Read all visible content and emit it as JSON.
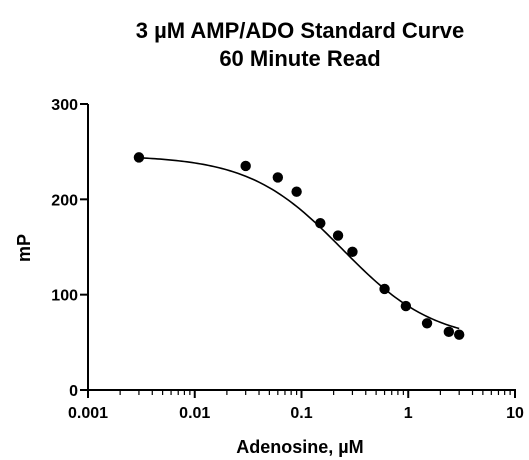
{
  "chart_data": {
    "type": "scatter",
    "scale": {
      "x": "log",
      "y": "linear"
    },
    "title": "3 µM AMP/ADO Standard Curve",
    "subtitle": "60 Minute Read",
    "xlabel": "Adenosine, µM",
    "ylabel": "mP",
    "xlim": [
      0.001,
      10
    ],
    "ylim": [
      0,
      300
    ],
    "x_ticks": [
      0.001,
      0.01,
      0.1,
      1,
      10
    ],
    "x_tick_labels": [
      "0.001",
      "0.01",
      "0.1",
      "1",
      "10"
    ],
    "y_ticks": [
      0,
      100,
      200,
      300
    ],
    "y_tick_labels": [
      "0",
      "100",
      "200",
      "300"
    ],
    "grid": false,
    "legend": "none",
    "marker_color": "#000000",
    "series": [
      {
        "x": [
          0.003,
          0.03,
          0.06,
          0.09,
          0.15,
          0.22,
          0.3,
          0.6,
          0.95,
          1.5,
          2.4,
          3.0
        ],
        "y": [
          244,
          235,
          223,
          208,
          175,
          162,
          145,
          106,
          88,
          70,
          61,
          58
        ]
      }
    ],
    "fit_curve": {
      "model": "four-parameter sigmoidal (log x)",
      "top": 246,
      "bottom": 50,
      "log_ec50": -0.62,
      "hill_slope": -1.0,
      "x_range": [
        0.003,
        3.0
      ]
    }
  }
}
